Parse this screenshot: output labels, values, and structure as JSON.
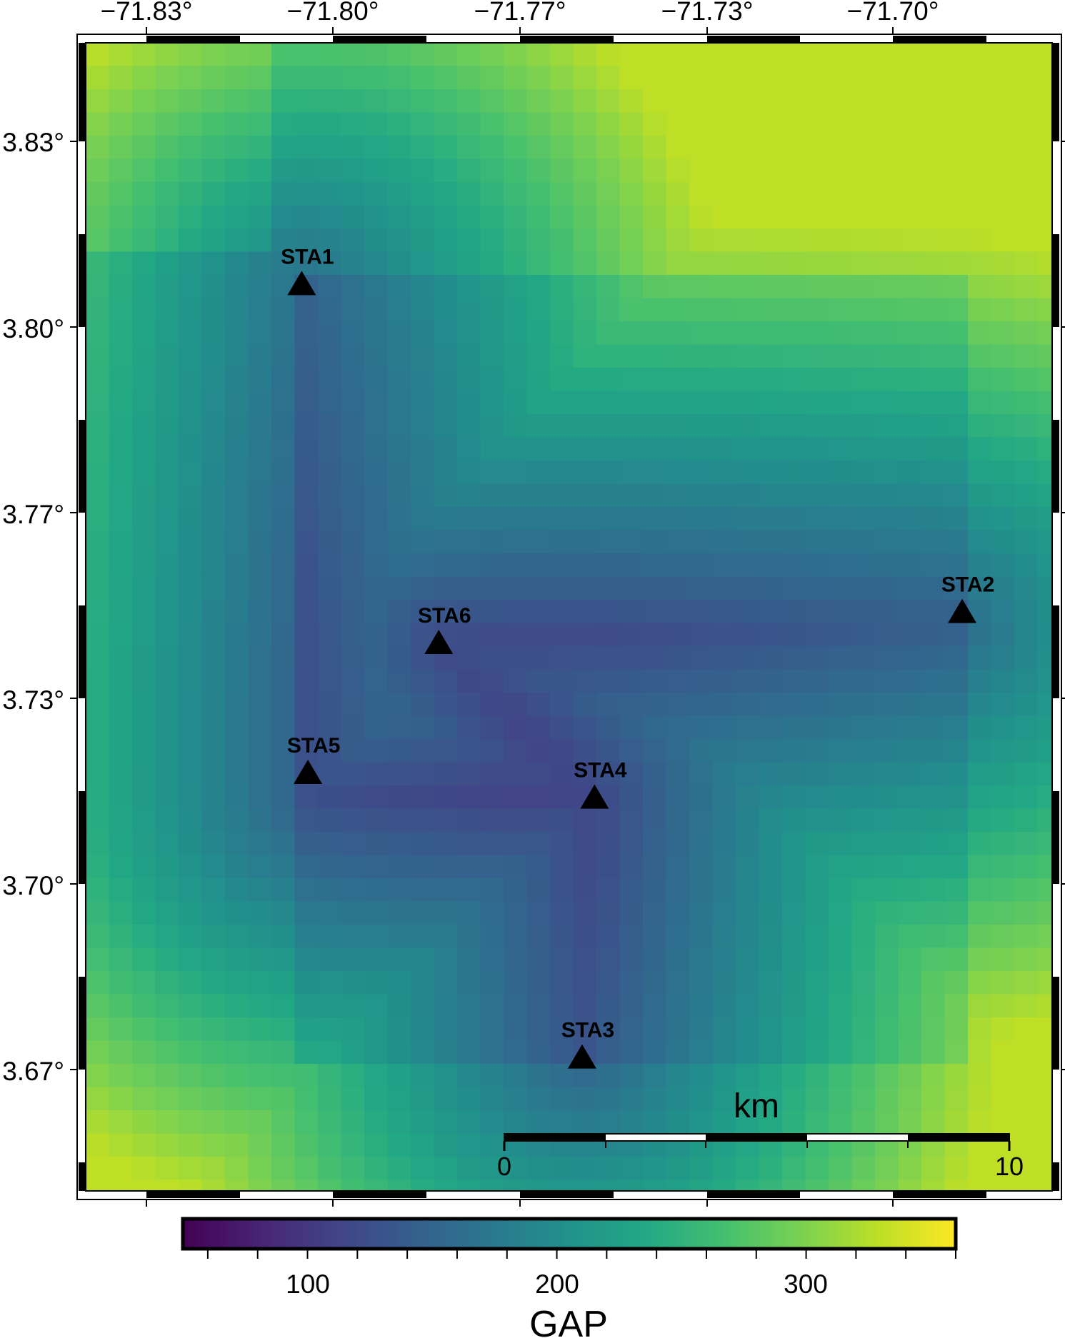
{
  "map": {
    "lon_ticks": [
      "−71.83°",
      "−71.80°",
      "−71.77°",
      "−71.73°",
      "−71.70°"
    ],
    "lat_ticks": [
      "3.83°",
      "3.80°",
      "3.77°",
      "3.73°",
      "3.70°",
      "3.67°"
    ],
    "stations": [
      {
        "name": "STA1",
        "lon": -71.805,
        "lat": 3.807
      },
      {
        "name": "STA2",
        "lon": -71.699,
        "lat": 3.754
      },
      {
        "name": "STA6",
        "lon": -71.783,
        "lat": 3.749
      },
      {
        "name": "STA5",
        "lon": -71.804,
        "lat": 3.728
      },
      {
        "name": "STA4",
        "lon": -71.758,
        "lat": 3.724
      },
      {
        "name": "STA3",
        "lon": -71.76,
        "lat": 3.682
      }
    ],
    "scale_bar": {
      "unit": "km",
      "start_label": "0",
      "end_label": "10"
    }
  },
  "colorbar": {
    "title": "GAP",
    "ticks": [
      "100",
      "200",
      "300"
    ],
    "colormap": "viridis",
    "range": [
      50,
      360
    ]
  }
}
